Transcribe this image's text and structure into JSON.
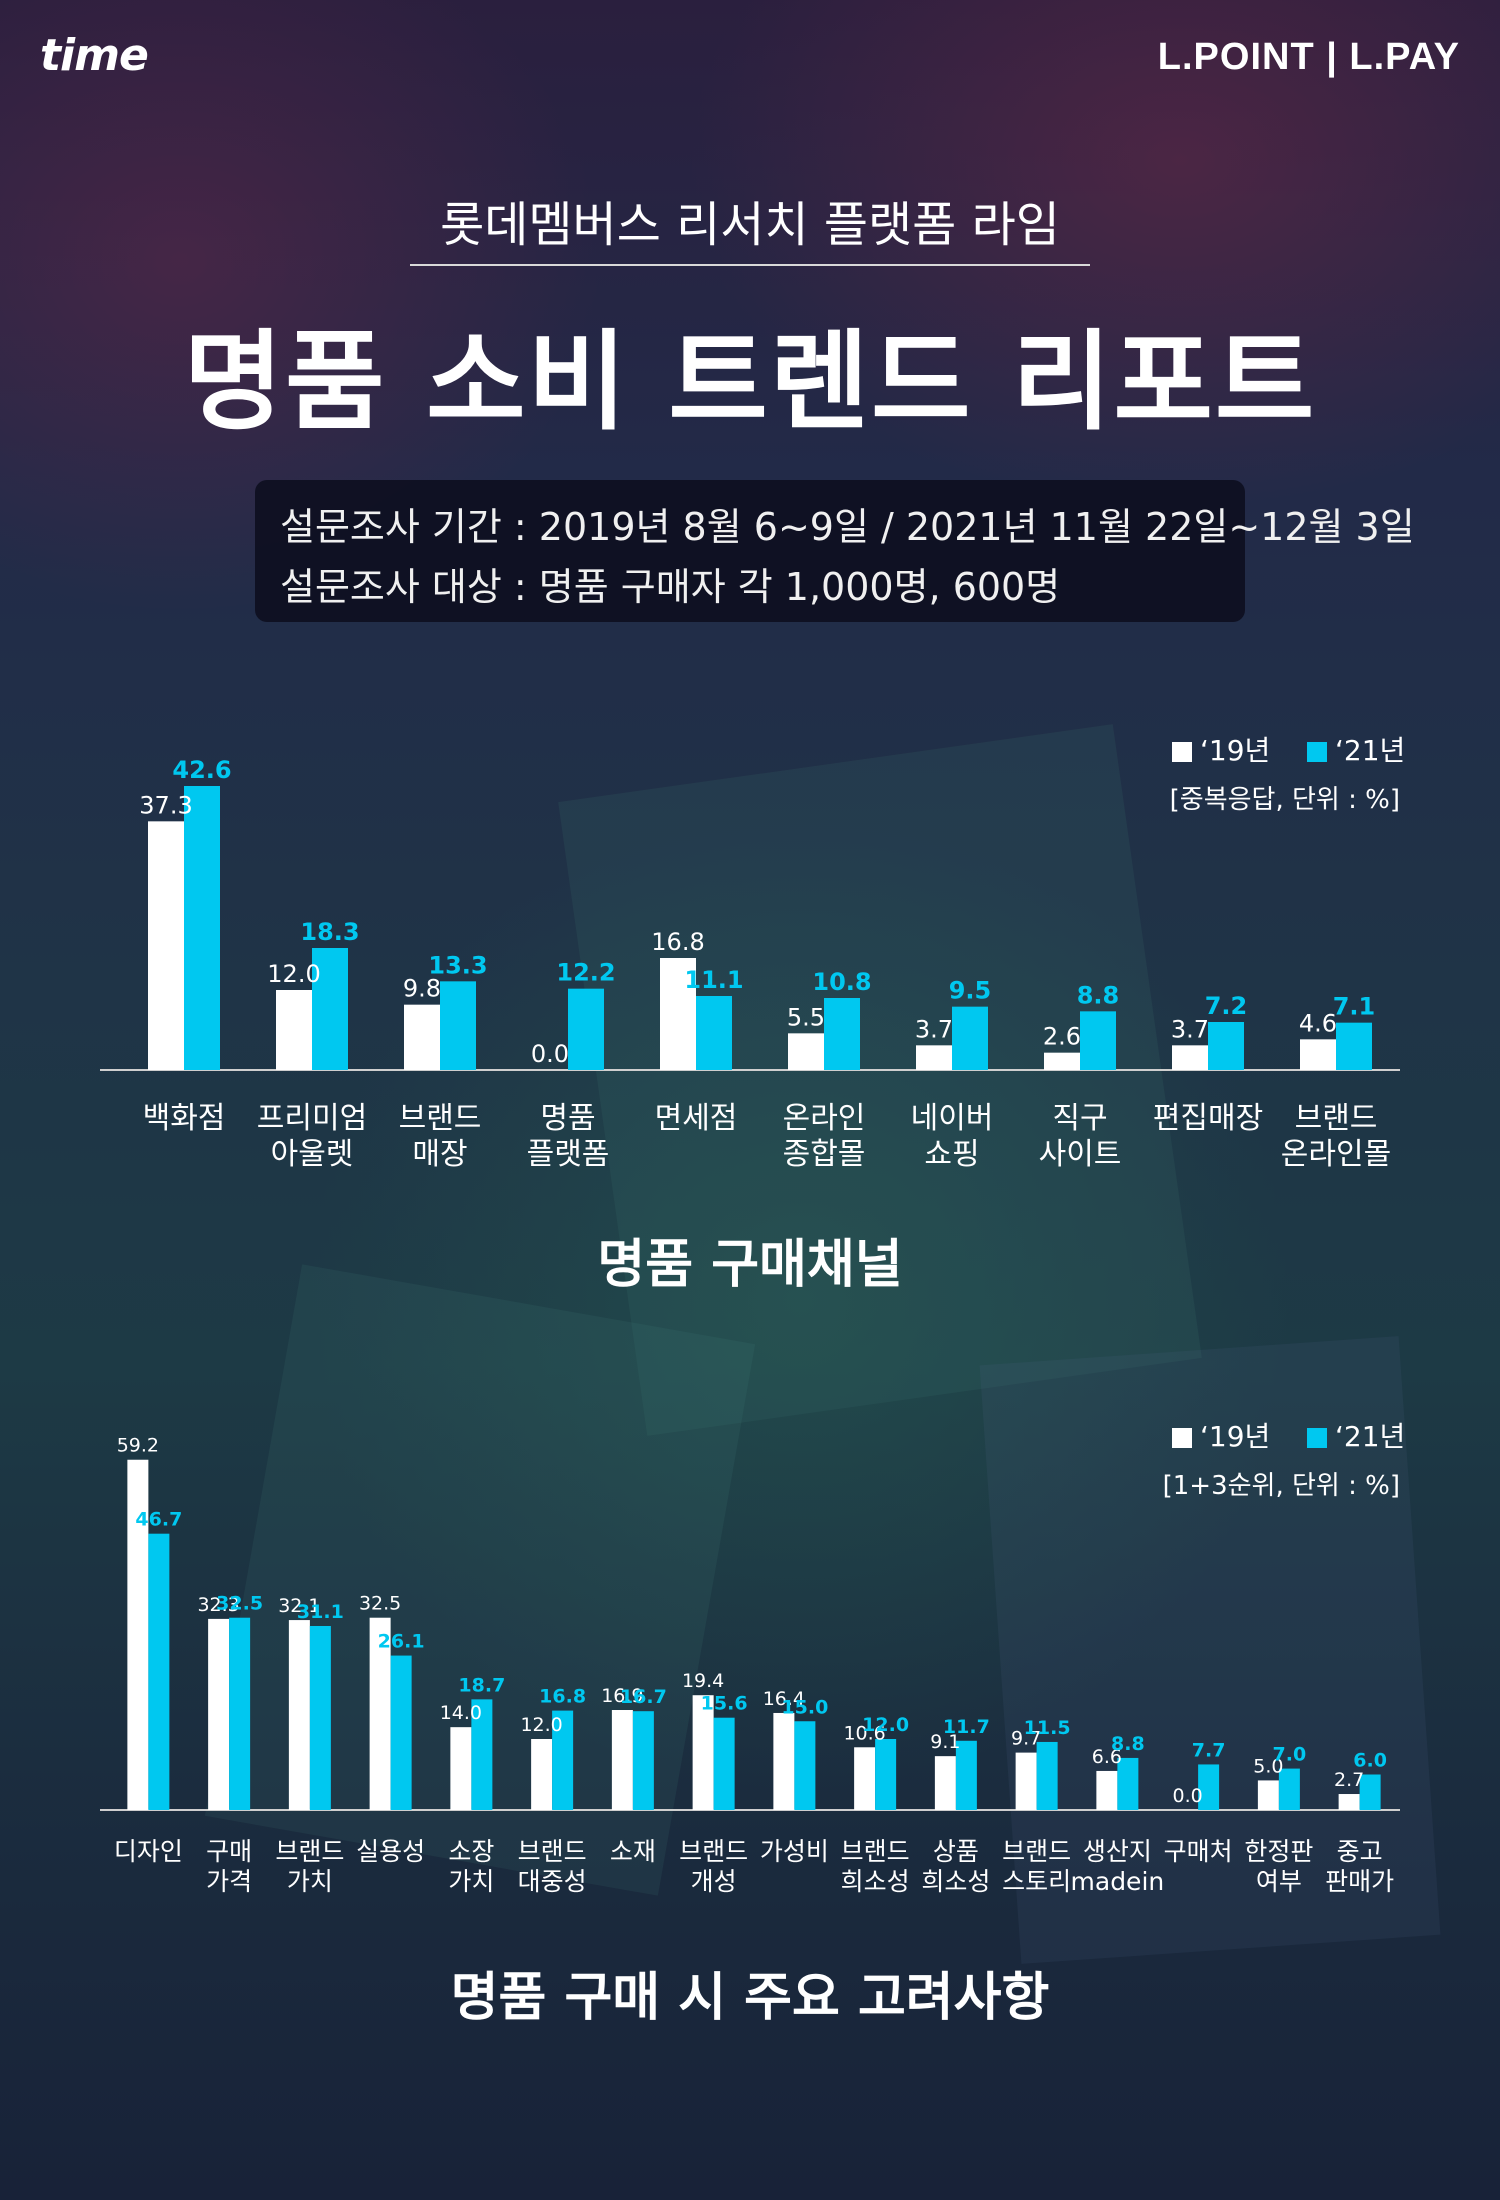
{
  "header": {
    "brand_left": "time",
    "brand_right": "L.POINT | L.PAY"
  },
  "subtitle": "롯데멤버스 리서치 플랫폼 라임",
  "title": "명품 소비 트렌드 리포트",
  "survey": {
    "period": "설문조사 기간 : 2019년 8월 6~9일 / 2021년 11월 22일~12월 3일",
    "target": "설문조사 대상 : 명품 구매자 각 1,000명, 600명"
  },
  "colors": {
    "series_2019": "#ffffff",
    "series_2021": "#00c8f0",
    "axis": "#cfcfcf"
  },
  "chart_data": [
    {
      "type": "bar",
      "title": "명품 구매채널",
      "note": "[중복응답, 단위 : %]",
      "legend_position": "top-right",
      "categories": [
        "백화점",
        "프리미엄\n아울렛",
        "브랜드\n매장",
        "명품\n플랫폼",
        "면세점",
        "온라인\n종합몰",
        "네이버\n쇼핑",
        "직구\n사이트",
        "편집매장",
        "브랜드\n온라인몰"
      ],
      "series": [
        {
          "name": "‘19년",
          "values": [
            37.3,
            12.0,
            9.8,
            0.0,
            16.8,
            5.5,
            3.7,
            2.6,
            3.7,
            4.6
          ]
        },
        {
          "name": "‘21년",
          "values": [
            42.6,
            18.3,
            13.3,
            12.2,
            11.1,
            10.8,
            9.5,
            8.8,
            7.2,
            7.1
          ]
        }
      ],
      "ylim": [
        0,
        45
      ]
    },
    {
      "type": "bar",
      "title": "명품 구매 시 주요 고려사항",
      "note": "[1+3순위, 단위 : %]",
      "legend_position": "top-right",
      "categories": [
        "디자인",
        "구매\n가격",
        "브랜드\n가치",
        "실용성",
        "소장\n가치",
        "브랜드\n대중성",
        "소재",
        "브랜드\n개성",
        "가성비",
        "브랜드\n희소성",
        "상품\n희소성",
        "브랜드\n스토리",
        "생산지\nmadein",
        "구매처",
        "한정판\n여부",
        "중고\n판매가"
      ],
      "series": [
        {
          "name": "‘19년",
          "values": [
            59.2,
            32.3,
            32.1,
            32.5,
            14.0,
            12.0,
            16.9,
            19.4,
            16.4,
            10.6,
            9.1,
            9.7,
            6.6,
            0.0,
            5.0,
            2.7
          ]
        },
        {
          "name": "‘21년",
          "values": [
            46.7,
            32.5,
            31.1,
            26.1,
            18.7,
            16.8,
            16.7,
            15.6,
            15.0,
            12.0,
            11.7,
            11.5,
            8.8,
            7.7,
            7.0,
            6.0
          ]
        }
      ],
      "ylim": [
        0,
        60
      ]
    }
  ]
}
